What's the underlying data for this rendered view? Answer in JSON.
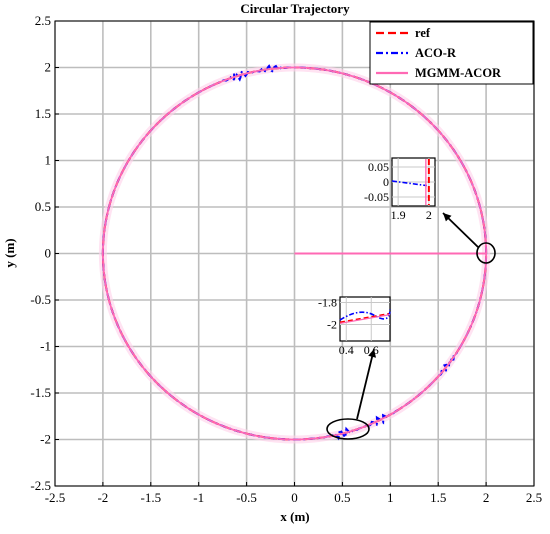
{
  "chart_data": {
    "type": "line",
    "title": "Circular Trajectory",
    "xlabel": "x (m)",
    "ylabel": "y (m)",
    "xlim": [
      -2.5,
      2.5
    ],
    "ylim": [
      -2.5,
      2.5
    ],
    "xticks": [
      "-2.5",
      "-2",
      "-1.5",
      "-1",
      "-0.5",
      "0",
      "0.5",
      "1",
      "1.5",
      "2",
      "2.5"
    ],
    "yticks": [
      "-2.5",
      "-2",
      "-1.5",
      "-1",
      "-0.5",
      "0",
      "0.5",
      "1",
      "1.5",
      "2",
      "2.5"
    ],
    "grid": true,
    "legend_position": "top-right",
    "series": [
      {
        "name": "ref",
        "color": "#ff0000",
        "style": "dashed",
        "shape": "circle",
        "center": [
          0,
          0
        ],
        "radius": 2
      },
      {
        "name": "ACO-R",
        "color": "#0000ff",
        "style": "dash-dot",
        "shape": "circle with local deviations",
        "center": [
          0,
          0
        ],
        "radius": 2,
        "deviations": [
          {
            "x": -0.6,
            "y": 1.92,
            "amplitude": 0.05
          },
          {
            "x": -0.25,
            "y": 1.99,
            "amplitude": 0.04
          },
          {
            "x": 0.5,
            "y": -1.93,
            "amplitude": 0.05
          },
          {
            "x": 0.9,
            "y": -1.8,
            "amplitude": 0.04
          },
          {
            "x": 1.6,
            "y": -1.2,
            "amplitude": 0.03
          }
        ]
      },
      {
        "name": "MGMM-ACOR",
        "color": "#ff69b4",
        "style": "solid",
        "shape": "circle with start segment",
        "center": [
          0,
          0
        ],
        "radius": 2,
        "segment": {
          "x": [
            0,
            2
          ],
          "y": [
            0,
            0
          ]
        }
      }
    ],
    "insets": [
      {
        "xticks": [
          "1.9",
          "2"
        ],
        "yticks": [
          "0.05",
          "0",
          "-0.05"
        ],
        "xlim": [
          1.88,
          2.02
        ],
        "ylim": [
          -0.08,
          0.08
        ],
        "zoom_center": [
          2.0,
          0.0
        ]
      },
      {
        "xticks": [
          "0.4",
          "0.6"
        ],
        "yticks": [
          "-1.8",
          "-2"
        ],
        "xlim": [
          0.35,
          0.75
        ],
        "ylim": [
          -2.15,
          -1.75
        ],
        "zoom_center": [
          0.5,
          -1.95
        ]
      }
    ]
  }
}
